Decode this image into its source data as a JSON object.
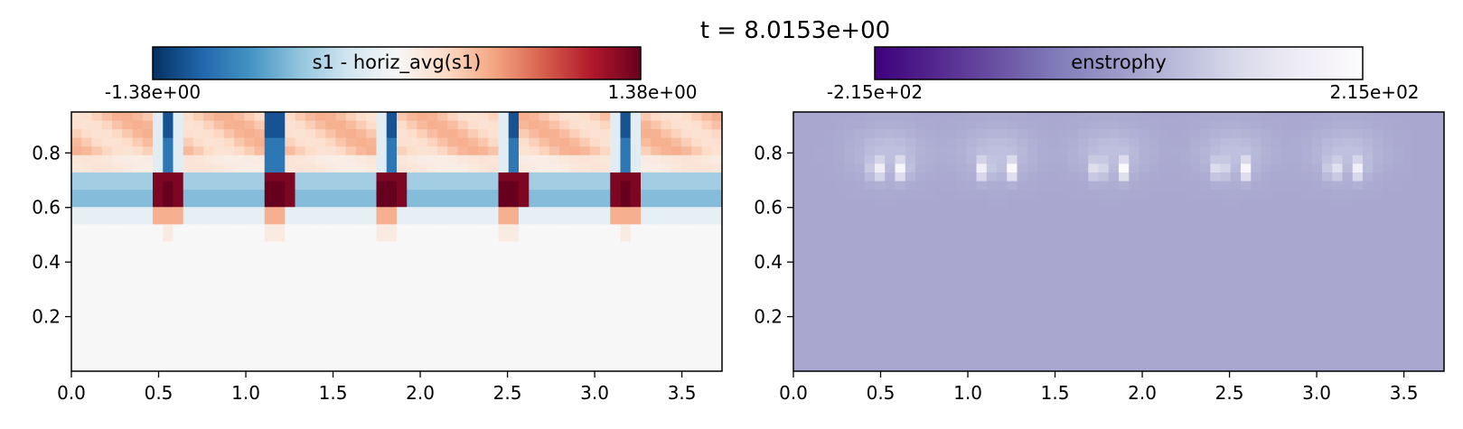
{
  "figure": {
    "title": "t = 8.0153e+00"
  },
  "chart_data": [
    {
      "type": "heatmap",
      "colormap": "RdBu_r",
      "colorbar": {
        "label": "s1 - horiz_avg(s1)",
        "min_label": "-1.38e+00",
        "max_label": "1.38e+00",
        "range": [
          -1.38,
          1.38
        ],
        "position": "top"
      },
      "xlim": [
        0,
        3.73
      ],
      "ylim": [
        0,
        0.95
      ],
      "x_ticks": [
        "0.0",
        "0.5",
        "1.0",
        "1.5",
        "2.0",
        "2.5",
        "3.0",
        "3.5"
      ],
      "y_ticks": [
        "0.2",
        "0.4",
        "0.6",
        "0.8"
      ],
      "grid": false,
      "plumes_x": [
        0.55,
        1.17,
        1.82,
        2.52,
        3.17
      ],
      "field_rows": {
        "below_0_55": 0.0,
        "band_0_62_0_72_between_plumes": -0.6,
        "band_0_62_0_72_at_plumes": 1.3,
        "top_0_75_0_95_between_plumes": 0.35,
        "top_0_75_0_95_at_plumes": -1.0
      }
    },
    {
      "type": "heatmap",
      "colormap": "Purples_r",
      "colorbar": {
        "label": "enstrophy",
        "min_label": "-2.15e+02",
        "max_label": "2.15e+02",
        "range": [
          -215,
          215
        ],
        "position": "top"
      },
      "xlim": [
        0,
        3.73
      ],
      "ylim": [
        0,
        0.95
      ],
      "x_ticks": [
        "0.0",
        "0.5",
        "1.0",
        "1.5",
        "2.0",
        "2.5",
        "3.0",
        "3.5"
      ],
      "y_ticks": [
        "0.2",
        "0.4",
        "0.6",
        "0.8"
      ],
      "grid": false,
      "background_value": 20,
      "bright_pairs_x": [
        0.55,
        1.17,
        1.82,
        2.52,
        3.17
      ],
      "bright_pairs_y": 0.74,
      "bright_peak_value": 215
    }
  ],
  "colors": {
    "rdbu": [
      "#053061",
      "#2166ac",
      "#4393c3",
      "#92c5de",
      "#d1e5f0",
      "#f7f7f7",
      "#fddbc7",
      "#f4a582",
      "#d6604d",
      "#b2182b",
      "#67001f"
    ],
    "purples": [
      "#3f007d",
      "#54278f",
      "#6a51a3",
      "#807dba",
      "#9e9ac8",
      "#bcbddc",
      "#dadaeb",
      "#efedf5",
      "#fcfbfd"
    ]
  }
}
